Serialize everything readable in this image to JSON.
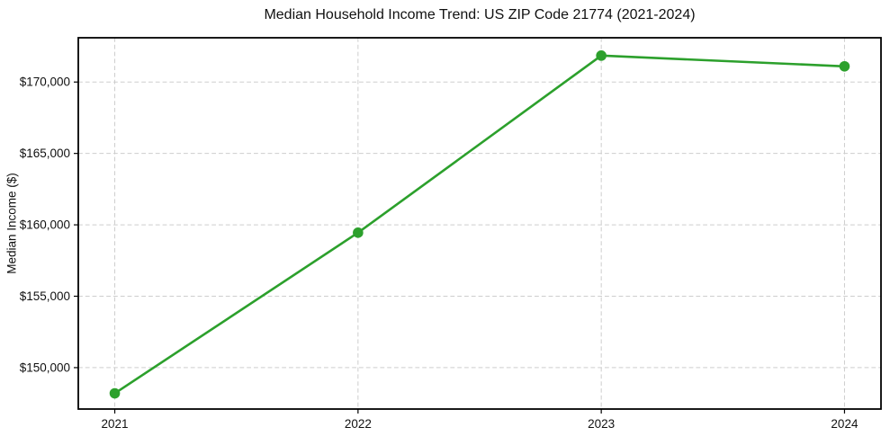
{
  "page": {
    "background": "#ffffff"
  },
  "chart_data": {
    "type": "line",
    "title": "Median Household Income Trend: US ZIP Code 21774 (2021-2024)",
    "xlabel": "",
    "ylabel": "Median Income ($)",
    "x": [
      2021,
      2022,
      2023,
      2024
    ],
    "x_tick_labels": [
      "2021",
      "2022",
      "2023",
      "2024"
    ],
    "values": [
      148200,
      159450,
      171850,
      171100
    ],
    "y_ticks": [
      150000,
      155000,
      160000,
      165000,
      170000
    ],
    "y_tick_labels": [
      "$150,000",
      "$155,000",
      "$160,000",
      "$165,000",
      "$170,000"
    ],
    "xlim": [
      2020.85,
      2024.15
    ],
    "ylim": [
      147100,
      173100
    ],
    "grid": true,
    "grid_style": "dashed",
    "legend": false,
    "marker": "circle",
    "line_color": "#2ca02c",
    "grid_color": "#cdcdcd",
    "axis_color": "#000000",
    "text_color": "#111111",
    "background": "#ffffff"
  }
}
